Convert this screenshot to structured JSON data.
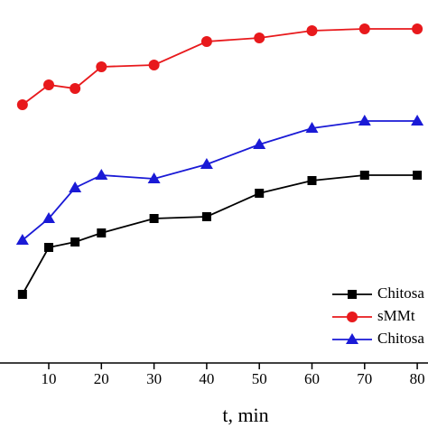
{
  "chart_data": {
    "type": "line",
    "x_label": "t, min",
    "x": [
      5,
      10,
      15,
      20,
      30,
      40,
      50,
      60,
      70,
      80
    ],
    "series": [
      {
        "name": "Chitosa",
        "color": "#000000",
        "marker": "square",
        "values": [
          19,
          32,
          33.5,
          36,
          40,
          40.5,
          47,
          50.5,
          52,
          52
        ]
      },
      {
        "name": "sMMt",
        "color": "#e8191c",
        "marker": "circle",
        "values": [
          71.5,
          77,
          76,
          82,
          82.5,
          89,
          90,
          92,
          92.5,
          92.5
        ]
      },
      {
        "name": "Chitosa",
        "color": "#1a1ad6",
        "marker": "triangle",
        "values": [
          34,
          40,
          48.5,
          52,
          51,
          55,
          60.5,
          65,
          67,
          67
        ]
      }
    ],
    "xlim": [
      0,
      85
    ],
    "xticks": [
      10,
      20,
      30,
      40,
      50,
      60,
      70,
      80
    ],
    "ylim": [
      0,
      100
    ],
    "legend": "lower right"
  }
}
